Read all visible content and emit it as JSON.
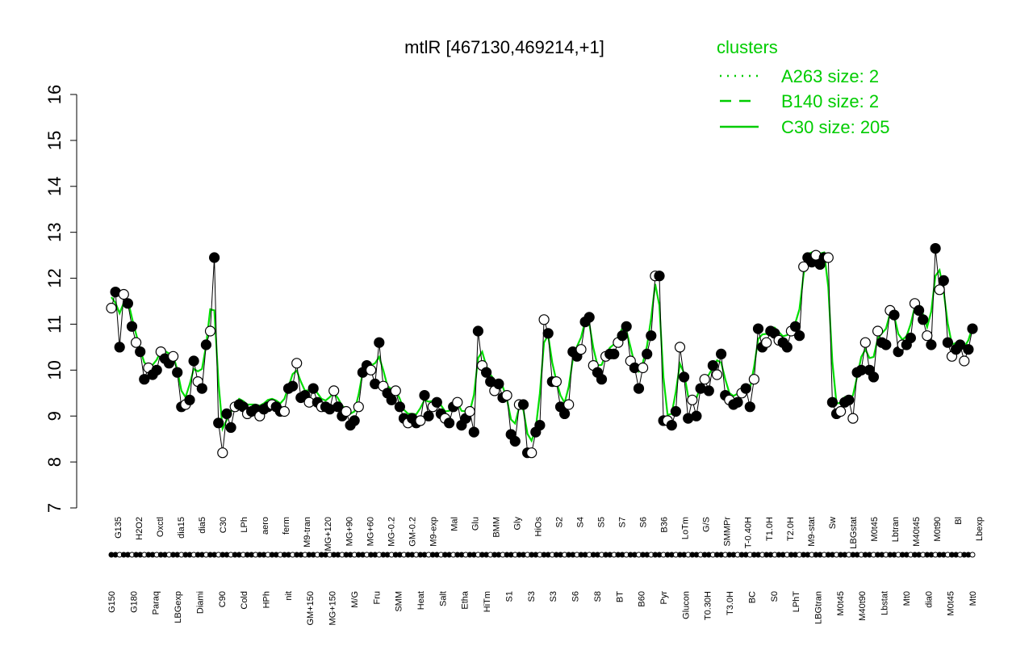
{
  "chart_data": {
    "type": "line",
    "title": "mtlR [467130,469214,+1]",
    "xlabel": "",
    "ylabel": "",
    "ylim": [
      7,
      16
    ],
    "yticks": [
      7,
      8,
      9,
      10,
      11,
      12,
      13,
      14,
      15,
      16
    ],
    "grid": false,
    "legend": {
      "title": "clusters",
      "placement": "top-right",
      "entries": [
        {
          "label": "A263 size: 2",
          "style": "dotted"
        },
        {
          "label": "B140 size: 2",
          "style": "dashed"
        },
        {
          "label": "C30 size: 205",
          "style": "solid"
        }
      ]
    },
    "colors": {
      "line": "#00dd00",
      "points": "#000000",
      "legend": "#00cc00"
    },
    "x_labels_top": [
      "G135",
      "H2O2",
      "Oxctl",
      "dia15",
      "dia5",
      "C30",
      "LPh",
      "aero",
      "ferm",
      "M9-tran",
      "MG+120",
      "MG+90",
      "MG+60",
      "MG-0.2",
      "GM-0.2",
      "M9-exp",
      "Mal",
      "Glu",
      "BMM",
      "Gly",
      "HiOs",
      "S2",
      "S4",
      "S5",
      "S7",
      "S6",
      "B36",
      "LoTm",
      "G/S",
      "SMMPr",
      "T-0.40H",
      "T1.0H",
      "T2.0H",
      "M9-stat",
      "Sw",
      "LBGstat",
      "M0t45",
      "Lbtran",
      "M40t45",
      "M0t90",
      "Bl",
      "Lbexp"
    ],
    "x_labels_bottom": [
      "G150",
      "G180",
      "Paraq",
      "LBGexp",
      "Diami",
      "C90",
      "Cold",
      "HPh",
      "nit",
      "GM+150",
      "MG+150",
      "M/G",
      "Fru",
      "SMM",
      "Heat",
      "Salt",
      "Etha",
      "HiTm",
      "S1",
      "S3",
      "S3",
      "S6",
      "S8",
      "BT",
      "B60",
      "Pyr",
      "Glucon",
      "T0.30H",
      "T3.0H",
      "BC",
      "S0",
      "LPhT",
      "LBGtran",
      "M0t45",
      "M40t90",
      "Lbstat",
      "Mt0",
      "dia0",
      "M0t45",
      "Mt0"
    ],
    "points": [
      {
        "x": 1,
        "y": 11.35
      },
      {
        "x": 2,
        "y": 11.7
      },
      {
        "x": 3,
        "y": 10.5
      },
      {
        "x": 4,
        "y": 11.65
      },
      {
        "x": 5,
        "y": 11.45
      },
      {
        "x": 6,
        "y": 10.95
      },
      {
        "x": 7,
        "y": 10.6
      },
      {
        "x": 8,
        "y": 10.4
      },
      {
        "x": 9,
        "y": 9.8
      },
      {
        "x": 10,
        "y": 10.05
      },
      {
        "x": 11,
        "y": 9.9
      },
      {
        "x": 12,
        "y": 10.0
      },
      {
        "x": 13,
        "y": 10.4
      },
      {
        "x": 14,
        "y": 10.25
      },
      {
        "x": 15,
        "y": 10.15
      },
      {
        "x": 16,
        "y": 10.3
      },
      {
        "x": 17,
        "y": 9.95
      },
      {
        "x": 18,
        "y": 9.2
      },
      {
        "x": 19,
        "y": 9.25
      },
      {
        "x": 20,
        "y": 9.35
      },
      {
        "x": 21,
        "y": 10.2
      },
      {
        "x": 22,
        "y": 9.75
      },
      {
        "x": 23,
        "y": 9.6
      },
      {
        "x": 24,
        "y": 10.55
      },
      {
        "x": 25,
        "y": 10.85
      },
      {
        "x": 26,
        "y": 12.45
      },
      {
        "x": 27,
        "y": 8.85
      },
      {
        "x": 28,
        "y": 8.2
      },
      {
        "x": 29,
        "y": 9.05
      },
      {
        "x": 30,
        "y": 8.75
      },
      {
        "x": 31,
        "y": 9.2
      },
      {
        "x": 32,
        "y": 9.25
      },
      {
        "x": 33,
        "y": 9.2
      },
      {
        "x": 34,
        "y": 9.05
      },
      {
        "x": 35,
        "y": 9.1
      },
      {
        "x": 36,
        "y": 9.15
      },
      {
        "x": 37,
        "y": 9.0
      },
      {
        "x": 38,
        "y": 9.15
      },
      {
        "x": 39,
        "y": 9.2
      },
      {
        "x": 40,
        "y": 9.25
      },
      {
        "x": 41,
        "y": 9.2
      },
      {
        "x": 42,
        "y": 9.1
      },
      {
        "x": 43,
        "y": 9.1
      },
      {
        "x": 44,
        "y": 9.6
      },
      {
        "x": 45,
        "y": 9.65
      },
      {
        "x": 46,
        "y": 10.15
      },
      {
        "x": 47,
        "y": 9.4
      },
      {
        "x": 48,
        "y": 9.45
      },
      {
        "x": 49,
        "y": 9.3
      },
      {
        "x": 50,
        "y": 9.6
      },
      {
        "x": 51,
        "y": 9.3
      },
      {
        "x": 52,
        "y": 9.2
      },
      {
        "x": 53,
        "y": 9.2
      },
      {
        "x": 54,
        "y": 9.15
      },
      {
        "x": 55,
        "y": 9.55
      },
      {
        "x": 56,
        "y": 9.2
      },
      {
        "x": 57,
        "y": 9.0
      },
      {
        "x": 58,
        "y": 9.1
      },
      {
        "x": 59,
        "y": 8.8
      },
      {
        "x": 60,
        "y": 8.9
      },
      {
        "x": 61,
        "y": 9.2
      },
      {
        "x": 62,
        "y": 9.95
      },
      {
        "x": 63,
        "y": 10.1
      },
      {
        "x": 64,
        "y": 10.0
      },
      {
        "x": 65,
        "y": 9.7
      },
      {
        "x": 66,
        "y": 10.6
      },
      {
        "x": 67,
        "y": 9.65
      },
      {
        "x": 68,
        "y": 9.5
      },
      {
        "x": 69,
        "y": 9.35
      },
      {
        "x": 70,
        "y": 9.55
      },
      {
        "x": 71,
        "y": 9.2
      },
      {
        "x": 72,
        "y": 8.95
      },
      {
        "x": 73,
        "y": 8.85
      },
      {
        "x": 74,
        "y": 8.95
      },
      {
        "x": 75,
        "y": 8.85
      },
      {
        "x": 76,
        "y": 8.9
      },
      {
        "x": 77,
        "y": 9.45
      },
      {
        "x": 78,
        "y": 9.0
      },
      {
        "x": 79,
        "y": 9.2
      },
      {
        "x": 80,
        "y": 9.3
      },
      {
        "x": 81,
        "y": 9.05
      },
      {
        "x": 82,
        "y": 8.95
      },
      {
        "x": 83,
        "y": 8.85
      },
      {
        "x": 84,
        "y": 9.2
      },
      {
        "x": 85,
        "y": 9.3
      },
      {
        "x": 86,
        "y": 8.8
      },
      {
        "x": 87,
        "y": 8.95
      },
      {
        "x": 88,
        "y": 9.1
      },
      {
        "x": 89,
        "y": 8.65
      },
      {
        "x": 90,
        "y": 10.85
      },
      {
        "x": 91,
        "y": 10.1
      },
      {
        "x": 92,
        "y": 9.95
      },
      {
        "x": 93,
        "y": 9.75
      },
      {
        "x": 94,
        "y": 9.55
      },
      {
        "x": 95,
        "y": 9.7
      },
      {
        "x": 96,
        "y": 9.4
      },
      {
        "x": 97,
        "y": 9.45
      },
      {
        "x": 98,
        "y": 8.6
      },
      {
        "x": 99,
        "y": 8.45
      },
      {
        "x": 100,
        "y": 9.25
      },
      {
        "x": 101,
        "y": 9.25
      },
      {
        "x": 102,
        "y": 8.2
      },
      {
        "x": 103,
        "y": 8.2
      },
      {
        "x": 104,
        "y": 8.65
      },
      {
        "x": 105,
        "y": 8.8
      },
      {
        "x": 106,
        "y": 11.1
      },
      {
        "x": 107,
        "y": 10.8
      },
      {
        "x": 108,
        "y": 9.75
      },
      {
        "x": 109,
        "y": 9.75
      },
      {
        "x": 110,
        "y": 9.2
      },
      {
        "x": 111,
        "y": 9.05
      },
      {
        "x": 112,
        "y": 9.25
      },
      {
        "x": 113,
        "y": 10.4
      },
      {
        "x": 114,
        "y": 10.3
      },
      {
        "x": 115,
        "y": 10.45
      },
      {
        "x": 116,
        "y": 11.05
      },
      {
        "x": 117,
        "y": 11.15
      },
      {
        "x": 118,
        "y": 10.1
      },
      {
        "x": 119,
        "y": 9.95
      },
      {
        "x": 120,
        "y": 9.8
      },
      {
        "x": 121,
        "y": 10.3
      },
      {
        "x": 122,
        "y": 10.35
      },
      {
        "x": 123,
        "y": 10.35
      },
      {
        "x": 124,
        "y": 10.6
      },
      {
        "x": 125,
        "y": 10.75
      },
      {
        "x": 126,
        "y": 10.95
      },
      {
        "x": 127,
        "y": 10.2
      },
      {
        "x": 128,
        "y": 10.05
      },
      {
        "x": 129,
        "y": 9.6
      },
      {
        "x": 130,
        "y": 10.05
      },
      {
        "x": 131,
        "y": 10.35
      },
      {
        "x": 132,
        "y": 10.75
      },
      {
        "x": 133,
        "y": 12.05
      },
      {
        "x": 134,
        "y": 12.05
      },
      {
        "x": 135,
        "y": 8.9
      },
      {
        "x": 136,
        "y": 8.9
      },
      {
        "x": 137,
        "y": 8.8
      },
      {
        "x": 138,
        "y": 9.1
      },
      {
        "x": 139,
        "y": 10.5
      },
      {
        "x": 140,
        "y": 9.85
      },
      {
        "x": 141,
        "y": 8.95
      },
      {
        "x": 142,
        "y": 9.35
      },
      {
        "x": 143,
        "y": 9.0
      },
      {
        "x": 144,
        "y": 9.6
      },
      {
        "x": 145,
        "y": 9.8
      },
      {
        "x": 146,
        "y": 9.55
      },
      {
        "x": 147,
        "y": 10.1
      },
      {
        "x": 148,
        "y": 9.9
      },
      {
        "x": 149,
        "y": 10.35
      },
      {
        "x": 150,
        "y": 9.45
      },
      {
        "x": 151,
        "y": 9.35
      },
      {
        "x": 152,
        "y": 9.25
      },
      {
        "x": 153,
        "y": 9.3
      },
      {
        "x": 154,
        "y": 9.5
      },
      {
        "x": 155,
        "y": 9.6
      },
      {
        "x": 156,
        "y": 9.2
      },
      {
        "x": 157,
        "y": 9.8
      },
      {
        "x": 158,
        "y": 10.9
      },
      {
        "x": 159,
        "y": 10.5
      },
      {
        "x": 160,
        "y": 10.6
      },
      {
        "x": 161,
        "y": 10.85
      },
      {
        "x": 162,
        "y": 10.8
      },
      {
        "x": 163,
        "y": 10.65
      },
      {
        "x": 164,
        "y": 10.6
      },
      {
        "x": 165,
        "y": 10.5
      },
      {
        "x": 166,
        "y": 10.85
      },
      {
        "x": 167,
        "y": 10.95
      },
      {
        "x": 168,
        "y": 10.75
      },
      {
        "x": 169,
        "y": 12.25
      },
      {
        "x": 170,
        "y": 12.45
      },
      {
        "x": 171,
        "y": 12.35
      },
      {
        "x": 172,
        "y": 12.5
      },
      {
        "x": 173,
        "y": 12.3
      },
      {
        "x": 174,
        "y": 12.45
      },
      {
        "x": 175,
        "y": 12.45
      },
      {
        "x": 176,
        "y": 9.3
      },
      {
        "x": 177,
        "y": 9.05
      },
      {
        "x": 178,
        "y": 9.1
      },
      {
        "x": 179,
        "y": 9.3
      },
      {
        "x": 180,
        "y": 9.35
      },
      {
        "x": 181,
        "y": 8.95
      },
      {
        "x": 182,
        "y": 9.95
      },
      {
        "x": 183,
        "y": 10.0
      },
      {
        "x": 184,
        "y": 10.6
      },
      {
        "x": 185,
        "y": 10.0
      },
      {
        "x": 186,
        "y": 9.85
      },
      {
        "x": 187,
        "y": 10.85
      },
      {
        "x": 188,
        "y": 10.6
      },
      {
        "x": 189,
        "y": 10.55
      },
      {
        "x": 190,
        "y": 11.3
      },
      {
        "x": 191,
        "y": 11.2
      },
      {
        "x": 192,
        "y": 10.4
      },
      {
        "x": 193,
        "y": 10.55
      },
      {
        "x": 194,
        "y": 10.55
      },
      {
        "x": 195,
        "y": 10.7
      },
      {
        "x": 196,
        "y": 11.45
      },
      {
        "x": 197,
        "y": 11.3
      },
      {
        "x": 198,
        "y": 11.1
      },
      {
        "x": 199,
        "y": 10.75
      },
      {
        "x": 200,
        "y": 10.55
      },
      {
        "x": 201,
        "y": 12.65
      },
      {
        "x": 202,
        "y": 11.75
      },
      {
        "x": 203,
        "y": 11.95
      },
      {
        "x": 204,
        "y": 10.6
      },
      {
        "x": 205,
        "y": 10.3
      },
      {
        "x": 206,
        "y": 10.45
      },
      {
        "x": 207,
        "y": 10.55
      },
      {
        "x": 208,
        "y": 10.2
      },
      {
        "x": 209,
        "y": 10.45
      },
      {
        "x": 210,
        "y": 10.9
      }
    ]
  }
}
